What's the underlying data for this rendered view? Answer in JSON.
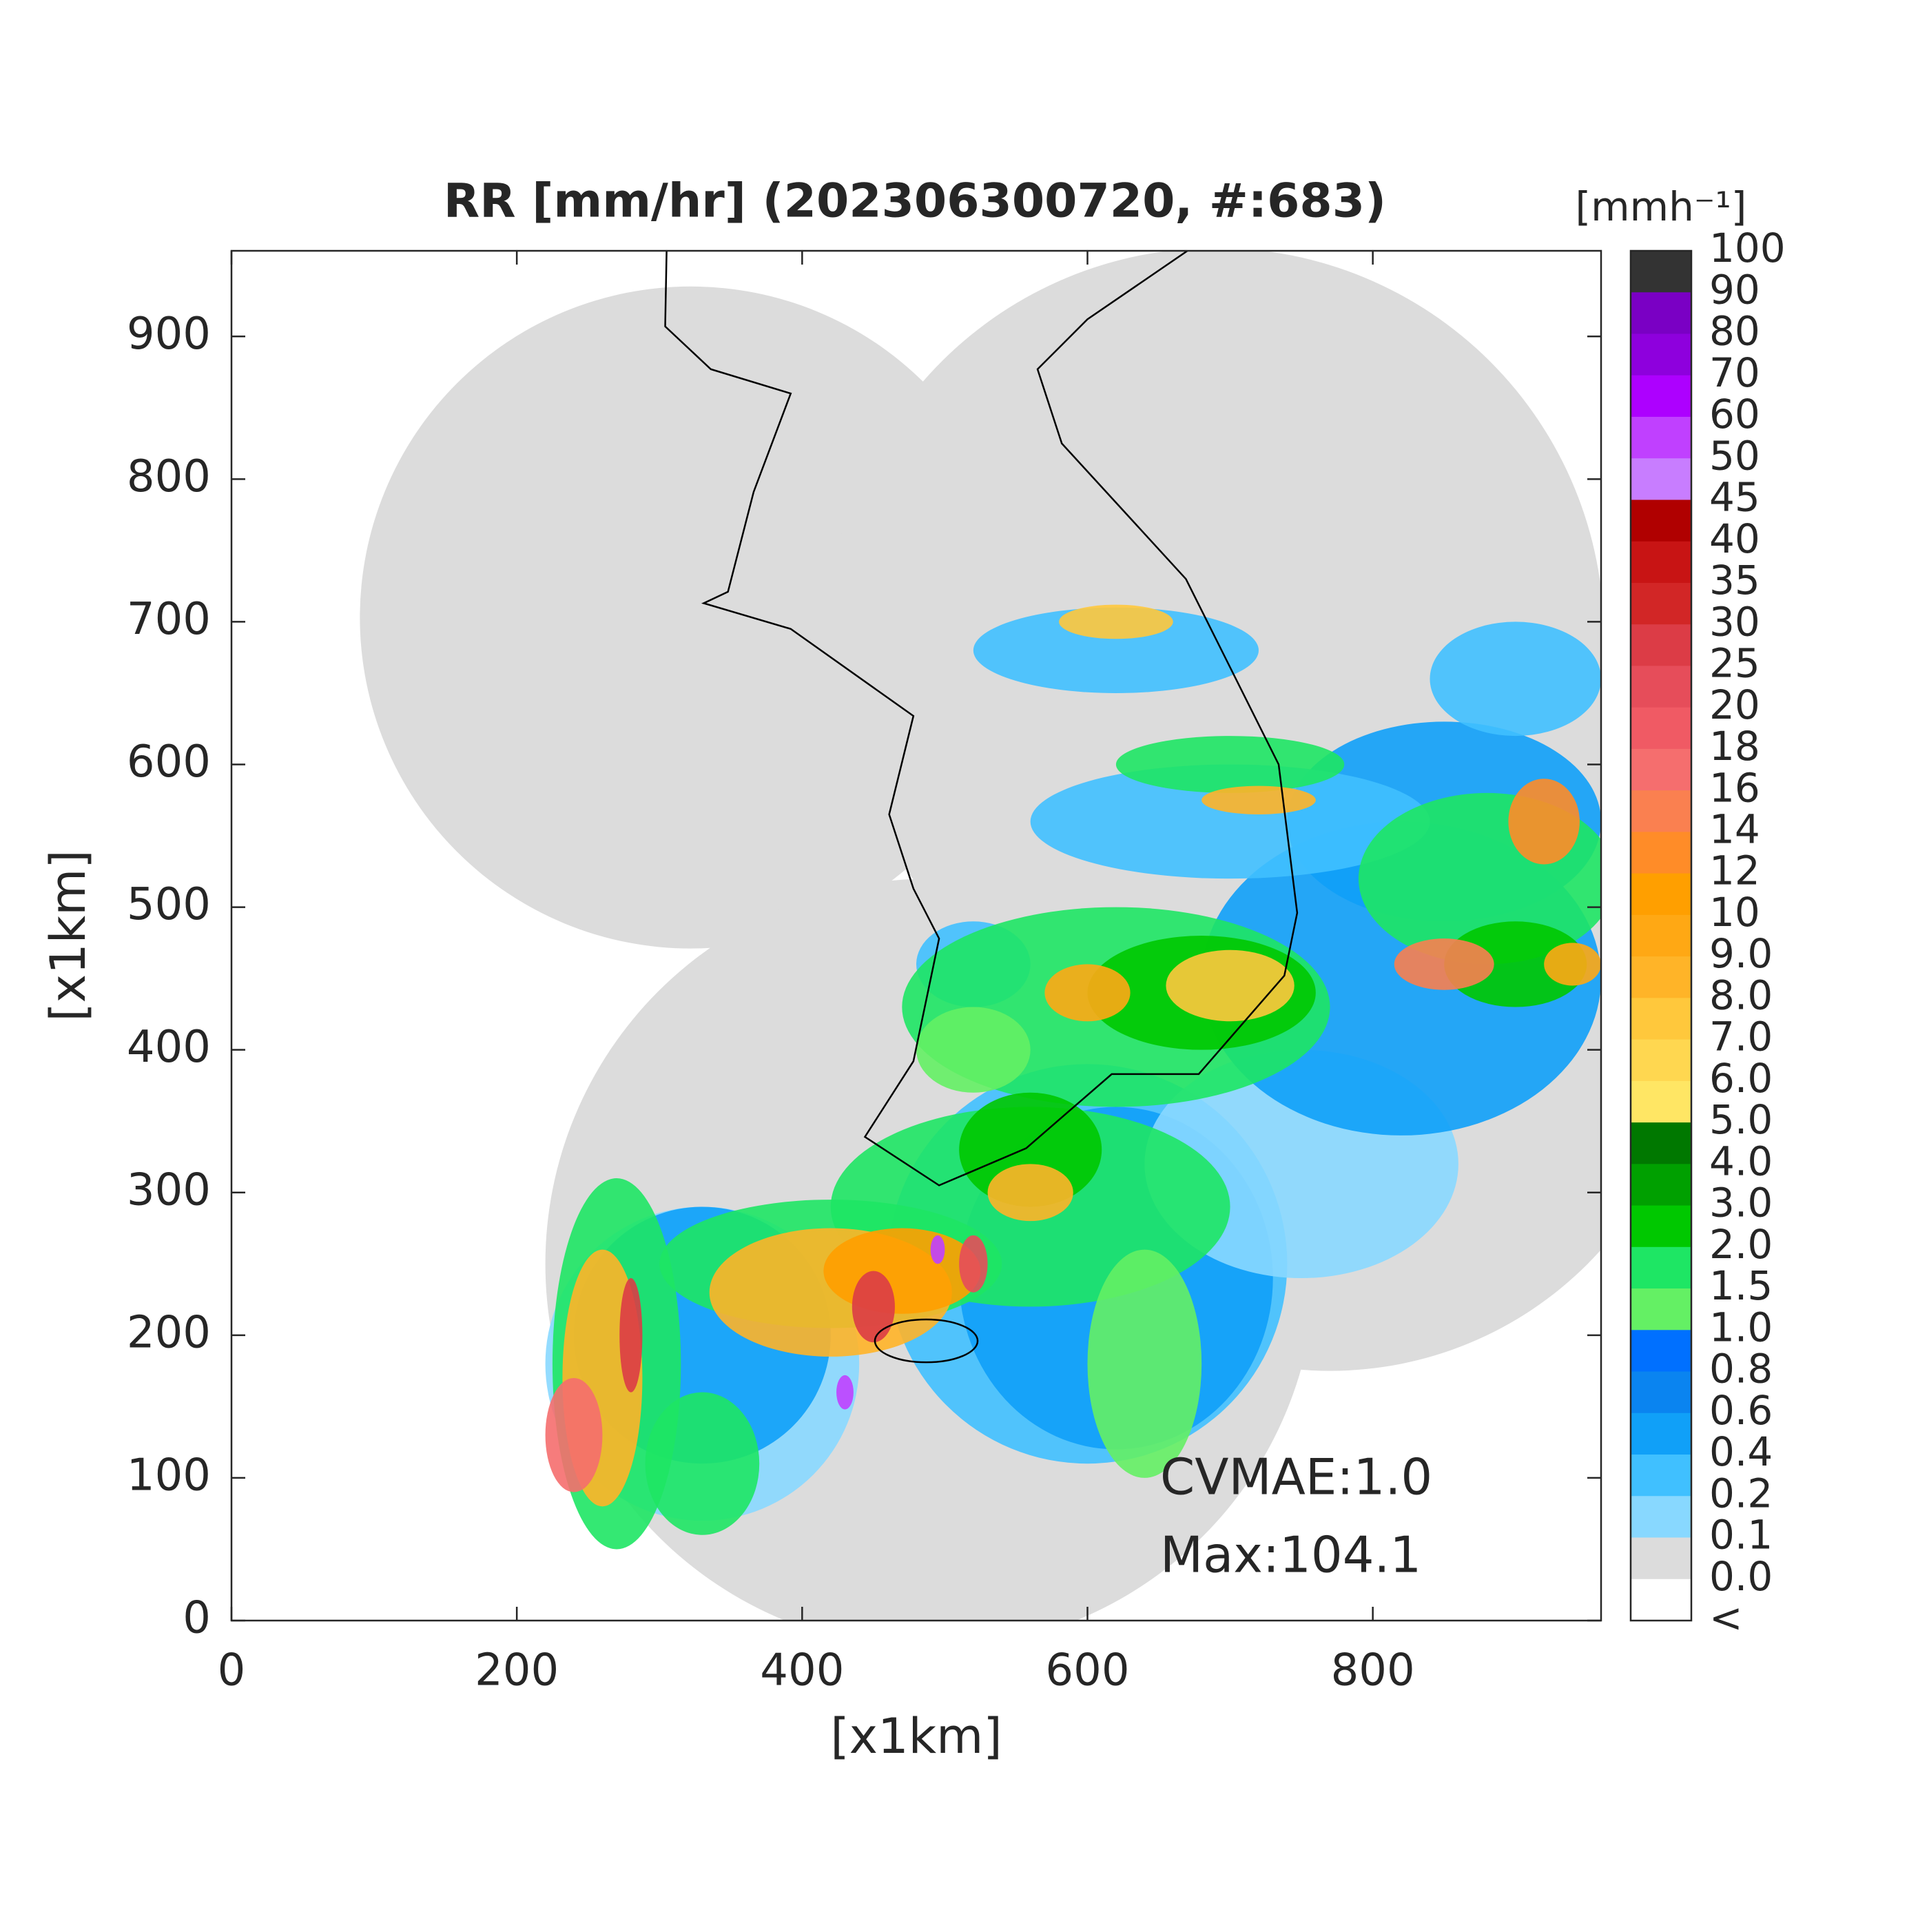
{
  "chart_data": {
    "type": "heatmap",
    "title": "RR [mm/hr] (202306300720, #:683)",
    "x_label": "[x1km]",
    "y_label": "[x1km]",
    "xlim": [
      0,
      960
    ],
    "ylim": [
      0,
      960
    ],
    "xticks": [
      0,
      200,
      400,
      600,
      800
    ],
    "yticks": [
      0,
      100,
      200,
      300,
      400,
      500,
      600,
      700,
      800,
      900
    ],
    "annotations": [
      "CVMAE:1.0",
      "Max:104.1"
    ],
    "colorbar": {
      "unit": "[mmh⁻¹]",
      "labels": [
        "100",
        "90",
        "80",
        "70",
        "60",
        "50",
        "45",
        "40",
        "35",
        "30",
        "25",
        "20",
        "18",
        "16",
        "14",
        "12",
        "10",
        "9.0",
        "8.0",
        "7.0",
        "6.0",
        "5.0",
        "4.0",
        "3.0",
        "2.0",
        "1.5",
        "1.0",
        "0.8",
        "0.6",
        "0.4",
        "0.2",
        "0.1",
        "0.0",
        "<"
      ],
      "colors": [
        "#333333",
        "#7a00c4",
        "#8e00dd",
        "#ad00ff",
        "#c040ff",
        "#c87dff",
        "#b00000",
        "#c81414",
        "#d22626",
        "#dc3c46",
        "#e64d5a",
        "#f05a64",
        "#f56e6e",
        "#fa8050",
        "#ff8c28",
        "#ff9f00",
        "#ffa814",
        "#ffb428",
        "#ffc83c",
        "#ffd750",
        "#ffe664",
        "#007800",
        "#00a000",
        "#00c800",
        "#1ee664",
        "#64f064",
        "#0070ff",
        "#0a84f0",
        "#10a0f8",
        "#40c0ff",
        "#88d8ff",
        "#dcdcdc",
        "#ffffff"
      ]
    }
  }
}
